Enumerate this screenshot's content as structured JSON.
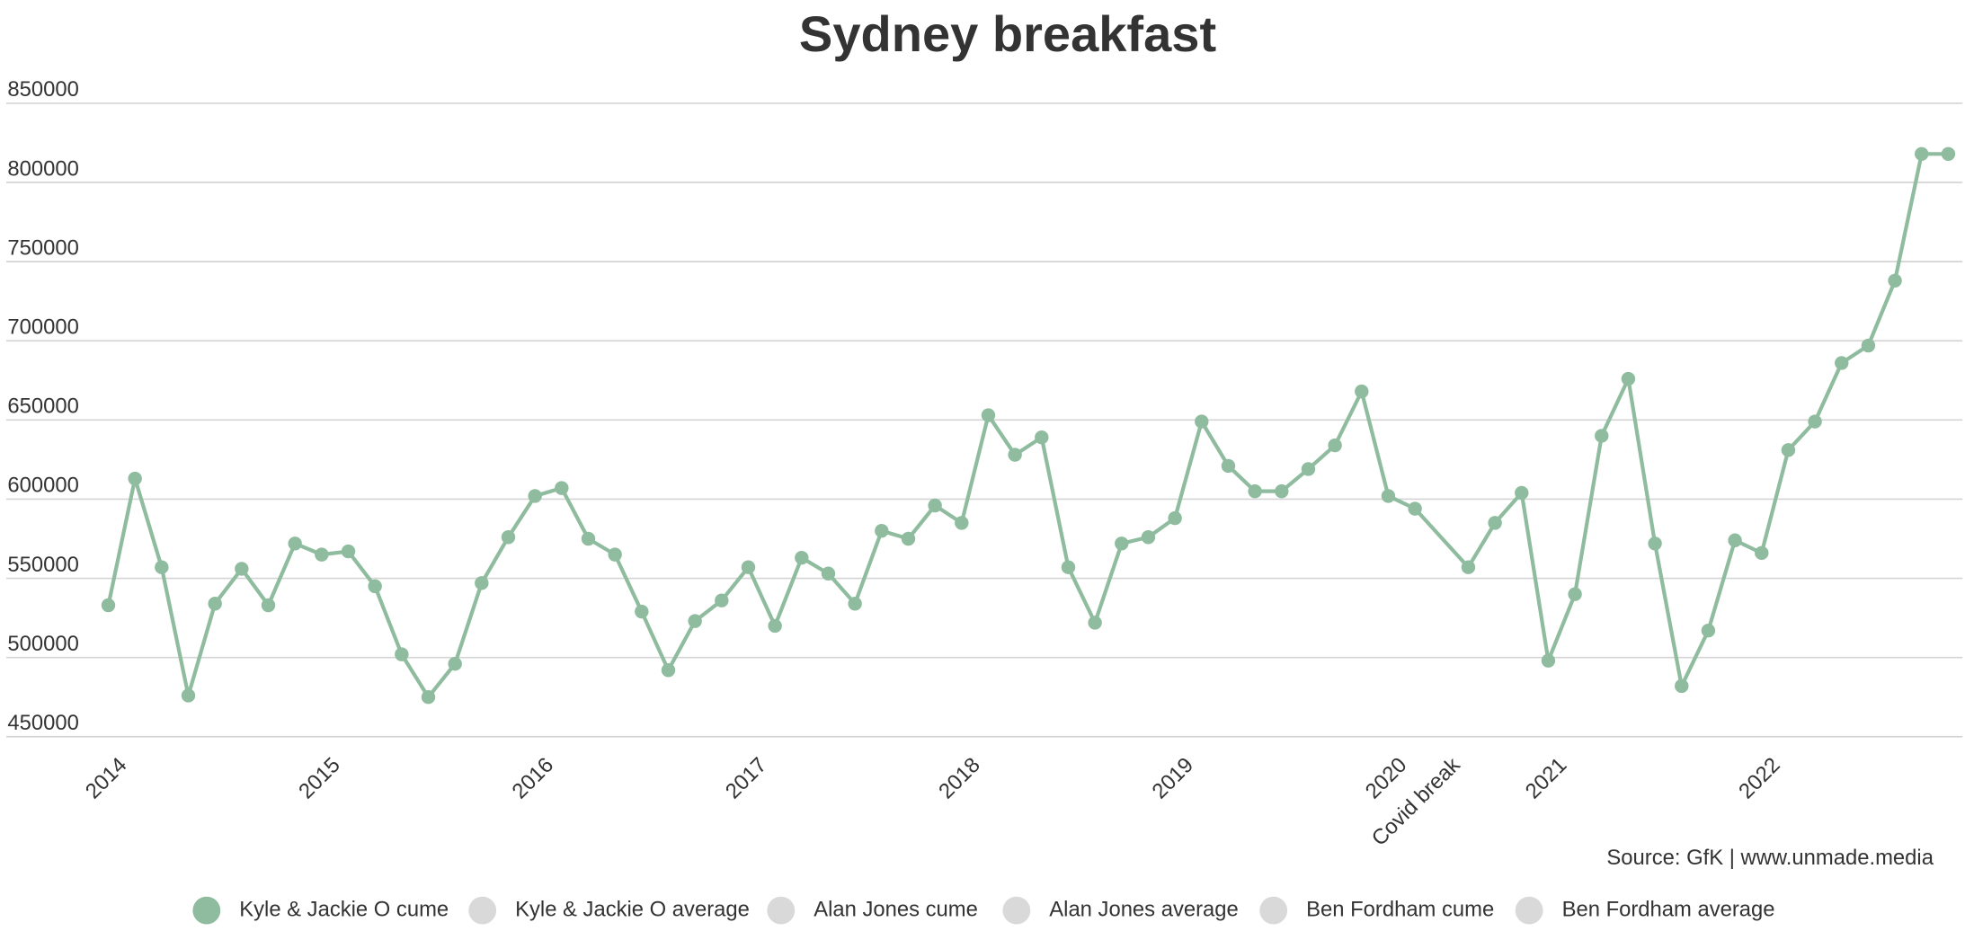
{
  "chart_data": {
    "type": "line",
    "title": "Sydney breakfast",
    "source": "Source: GfK | www.unmade.media",
    "categories": [
      "2014",
      null,
      null,
      null,
      null,
      null,
      null,
      null,
      "2015",
      null,
      null,
      null,
      null,
      null,
      null,
      null,
      "2016",
      null,
      null,
      null,
      null,
      null,
      null,
      null,
      "2017",
      null,
      null,
      null,
      null,
      null,
      null,
      null,
      "2018",
      null,
      null,
      null,
      null,
      null,
      null,
      null,
      "2019",
      null,
      null,
      null,
      null,
      null,
      null,
      null,
      "2020",
      null,
      "Covid break",
      null,
      null,
      null,
      "2021",
      null,
      null,
      null,
      null,
      null,
      null,
      null,
      "2022",
      null,
      null,
      null,
      null,
      null,
      null,
      null
    ],
    "series": [
      {
        "name": "Kyle & Jackie O cume",
        "color": "#8fbc9e",
        "values": [
          533000,
          613000,
          557000,
          476000,
          534000,
          556000,
          533000,
          572000,
          565000,
          567000,
          545000,
          502000,
          475000,
          496000,
          547000,
          576000,
          602000,
          607000,
          575000,
          565000,
          529000,
          492000,
          523000,
          536000,
          557000,
          520000,
          563000,
          553000,
          534000,
          580000,
          575000,
          596000,
          585000,
          653000,
          628000,
          639000,
          557000,
          522000,
          572000,
          576000,
          588000,
          649000,
          621000,
          605000,
          605000,
          619000,
          634000,
          668000,
          602000,
          594000,
          null,
          557000,
          585000,
          604000,
          498000,
          540000,
          640000,
          676000,
          572000,
          482000,
          517000,
          574000,
          566000,
          631000,
          649000,
          686000,
          697000,
          738000,
          818000,
          818000
        ]
      },
      {
        "name": "Kyle & Jackie O average",
        "color": "#d9d9d9"
      },
      {
        "name": "Alan Jones cume",
        "color": "#d9d9d9"
      },
      {
        "name": "Alan Jones average",
        "color": "#d9d9d9"
      },
      {
        "name": "Ben Fordham cume",
        "color": "#d9d9d9"
      },
      {
        "name": "Ben Fordham average",
        "color": "#d9d9d9"
      }
    ],
    "ylim": [
      450000,
      850000
    ],
    "yticks": [
      450000,
      500000,
      550000,
      600000,
      650000,
      700000,
      750000,
      800000,
      850000
    ],
    "grid": true
  }
}
